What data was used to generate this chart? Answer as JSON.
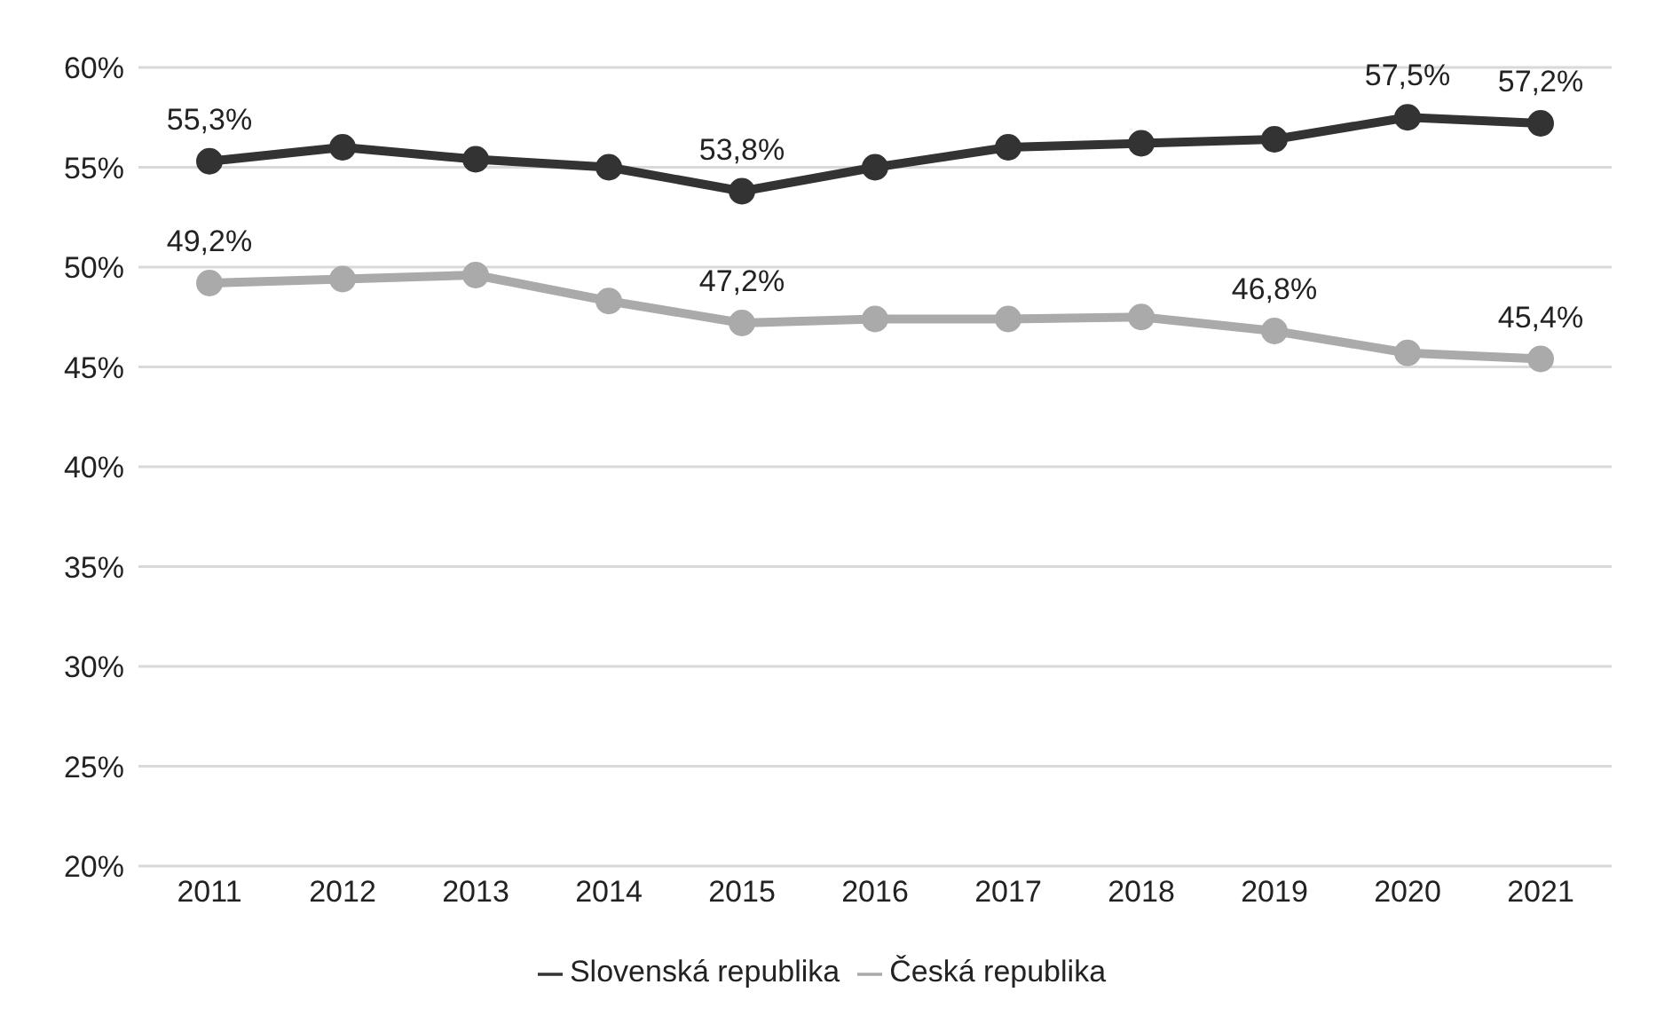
{
  "chart_data": {
    "type": "line",
    "categories": [
      "2011",
      "2012",
      "2013",
      "2014",
      "2015",
      "2016",
      "2017",
      "2018",
      "2019",
      "2020",
      "2021"
    ],
    "series": [
      {
        "name": "Slovenská republika",
        "color": "#333333",
        "values": [
          55.3,
          56.0,
          55.4,
          55.0,
          53.8,
          55.0,
          56.0,
          56.2,
          56.4,
          57.5,
          57.2
        ],
        "value_labels": [
          "55,3%",
          null,
          null,
          null,
          "53,8%",
          null,
          null,
          null,
          null,
          "57,5%",
          "57,2%"
        ]
      },
      {
        "name": "Česká republika",
        "color": "#aaaaaa",
        "values": [
          49.2,
          49.4,
          49.6,
          48.3,
          47.2,
          47.4,
          47.4,
          47.5,
          46.8,
          45.7,
          45.4
        ],
        "value_labels": [
          "49,2%",
          null,
          null,
          null,
          "47,2%",
          null,
          null,
          null,
          "46,8%",
          null,
          "45,4%"
        ]
      }
    ],
    "ylim": [
      20,
      60
    ],
    "yticks": [
      {
        "value": 20,
        "label": "20%"
      },
      {
        "value": 25,
        "label": "25%"
      },
      {
        "value": 30,
        "label": "30%"
      },
      {
        "value": 35,
        "label": "35%"
      },
      {
        "value": 40,
        "label": "40%"
      },
      {
        "value": 45,
        "label": "45%"
      },
      {
        "value": 50,
        "label": "50%"
      },
      {
        "value": 55,
        "label": "55%"
      },
      {
        "value": 60,
        "label": "60%"
      }
    ],
    "grid": "y",
    "legend": "bottom",
    "marker": "circle",
    "line_style": "solid"
  }
}
